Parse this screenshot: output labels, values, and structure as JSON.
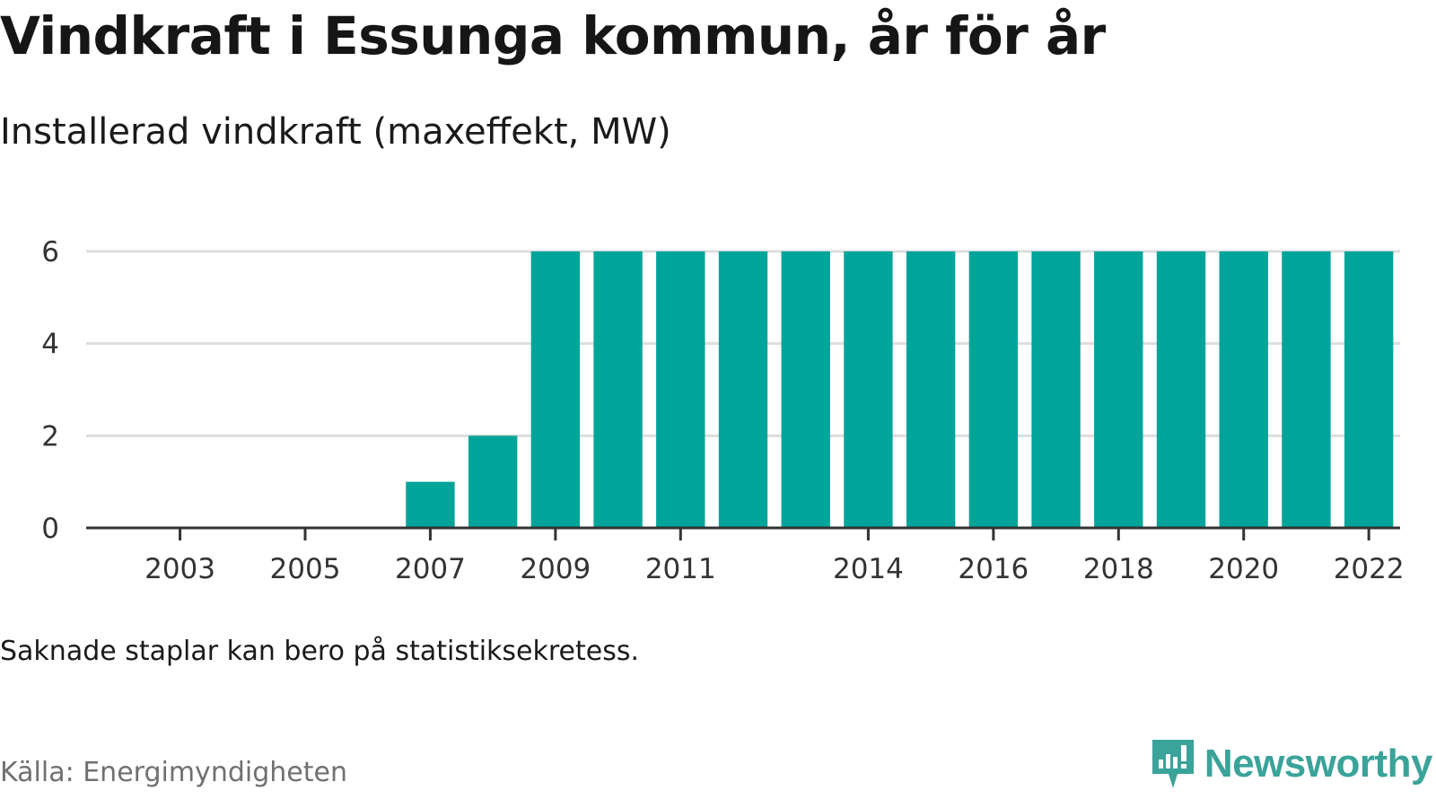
{
  "header": {
    "title": "Vindkraft i Essunga kommun, år för år",
    "subtitle": "Installerad vindkraft (maxeffekt, MW)"
  },
  "footer": {
    "note": "Saknade staplar kan bero på statistiksekretess.",
    "source": "Källa: Energimyndigheten",
    "brand": "Newsworthy"
  },
  "colors": {
    "bar": "#00a499",
    "brand": "#3aa39a",
    "grid": "#dddddd",
    "axis": "#333333"
  },
  "icons": {
    "brand_logo": "newsworthy-logo-icon"
  },
  "chart_data": {
    "type": "bar",
    "title": "Vindkraft i Essunga kommun, år för år",
    "subtitle": "Installerad vindkraft (maxeffekt, MW)",
    "xlabel": "",
    "ylabel": "",
    "categories": [
      2002,
      2003,
      2004,
      2005,
      2006,
      2007,
      2008,
      2009,
      2010,
      2011,
      2012,
      2013,
      2014,
      2015,
      2016,
      2017,
      2018,
      2019,
      2020,
      2021,
      2022
    ],
    "values": [
      0,
      0,
      0,
      0,
      0,
      1,
      2,
      6,
      6,
      6,
      6,
      6,
      6,
      6,
      6,
      6,
      6,
      6,
      6,
      6,
      6
    ],
    "x_tick_labels": [
      "2003",
      "2005",
      "2007",
      "2009",
      "2011",
      "2014",
      "2016",
      "2018",
      "2020",
      "2022"
    ],
    "y_ticks": [
      0,
      2,
      4,
      6
    ],
    "ylim": [
      0,
      6
    ],
    "grid": "horizontal",
    "legend": "none"
  }
}
